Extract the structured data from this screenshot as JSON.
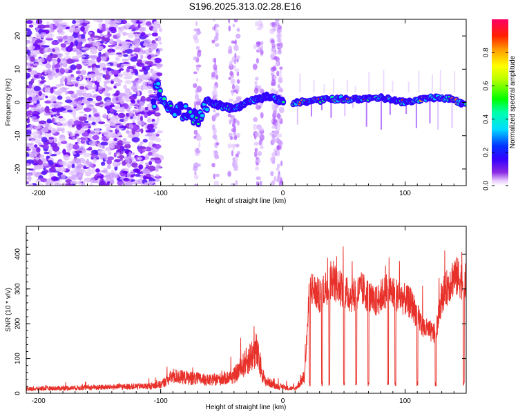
{
  "title": "S196.2025.313.02.28.E16",
  "chart_data": [
    {
      "type": "heatmap",
      "xlabel": "Height of straight line (km)",
      "ylabel": "Frequency (Hz)",
      "xlim": [
        -210,
        150
      ],
      "ylim": [
        -25,
        25
      ],
      "xticks": [
        -200,
        -100,
        0,
        100
      ],
      "yticks": [
        -20,
        -10,
        0,
        10,
        20
      ],
      "colorbar": {
        "label": "Normalized spectral amplitude",
        "range": [
          0,
          1
        ],
        "ticks": [
          0.0,
          0.2,
          0.4,
          0.6,
          0.8
        ],
        "colors": [
          "#ffffff",
          "#d9a6ff",
          "#7b00ff",
          "#0000ff",
          "#00ffff",
          "#00ff00",
          "#ffff00",
          "#ff8800",
          "#ff0000",
          "#ff0066"
        ]
      },
      "ridge": {
        "description_points": [
          {
            "x": -105,
            "y": 7
          },
          {
            "x": -100,
            "y": 2
          },
          {
            "x": -90,
            "y": -2
          },
          {
            "x": -80,
            "y": -3
          },
          {
            "x": -70,
            "y": -5
          },
          {
            "x": -60,
            "y": 0
          },
          {
            "x": -50,
            "y": -1
          },
          {
            "x": -40,
            "y": -2
          },
          {
            "x": -30,
            "y": 0
          },
          {
            "x": -20,
            "y": 1
          },
          {
            "x": -10,
            "y": 2
          },
          {
            "x": 0,
            "y": 0
          },
          {
            "x": 10,
            "y": 0
          },
          {
            "x": 40,
            "y": 1
          },
          {
            "x": 60,
            "y": 1
          },
          {
            "x": 80,
            "y": 1.5
          },
          {
            "x": 100,
            "y": 0
          },
          {
            "x": 120,
            "y": 1.5
          },
          {
            "x": 140,
            "y": 1
          },
          {
            "x": 150,
            "y": -1
          }
        ]
      }
    },
    {
      "type": "line",
      "xlabel": "Height of straight line (km)",
      "ylabel": "SNR (10 * v/v)",
      "xlim": [
        -210,
        150
      ],
      "ylim": [
        0,
        480
      ],
      "xticks": [
        -200,
        -100,
        0,
        100
      ],
      "yticks": [
        0,
        100,
        200,
        300,
        400
      ],
      "color": "#e8312a",
      "envelope": [
        {
          "x": -210,
          "y": 15
        },
        {
          "x": -160,
          "y": 20
        },
        {
          "x": -110,
          "y": 25
        },
        {
          "x": -100,
          "y": 30
        },
        {
          "x": -90,
          "y": 60
        },
        {
          "x": -80,
          "y": 55
        },
        {
          "x": -70,
          "y": 50
        },
        {
          "x": -60,
          "y": 45
        },
        {
          "x": -50,
          "y": 50
        },
        {
          "x": -40,
          "y": 60
        },
        {
          "x": -30,
          "y": 110
        },
        {
          "x": -22,
          "y": 150
        },
        {
          "x": -15,
          "y": 45
        },
        {
          "x": -5,
          "y": 25
        },
        {
          "x": 10,
          "y": 15
        },
        {
          "x": 18,
          "y": 60
        },
        {
          "x": 22,
          "y": 310
        },
        {
          "x": 30,
          "y": 280
        },
        {
          "x": 40,
          "y": 330
        },
        {
          "x": 45,
          "y": 310
        },
        {
          "x": 55,
          "y": 280
        },
        {
          "x": 65,
          "y": 300
        },
        {
          "x": 75,
          "y": 260
        },
        {
          "x": 85,
          "y": 300
        },
        {
          "x": 95,
          "y": 280
        },
        {
          "x": 105,
          "y": 260
        },
        {
          "x": 115,
          "y": 190
        },
        {
          "x": 125,
          "y": 170
        },
        {
          "x": 130,
          "y": 280
        },
        {
          "x": 140,
          "y": 340
        },
        {
          "x": 150,
          "y": 320
        }
      ],
      "dropouts_x": [
        22,
        32,
        38,
        50,
        60,
        70,
        86,
        92,
        110,
        125,
        148
      ]
    }
  ]
}
